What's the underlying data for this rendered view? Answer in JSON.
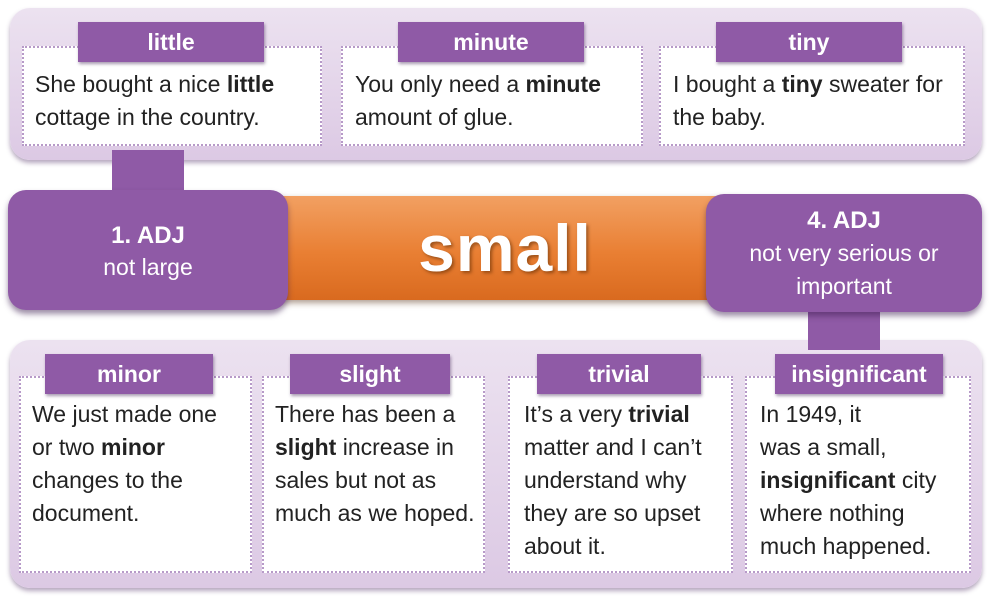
{
  "headword": "small",
  "senses": [
    {
      "number": "1. ADJ",
      "definition": "not large"
    },
    {
      "number": "4. ADJ",
      "definition_line1": "not very serious or",
      "definition_line2": "important"
    }
  ],
  "sense1_synonyms": [
    {
      "word": "little",
      "lines": [
        "She bought a nice <b>little</b>",
        "cottage in the country."
      ]
    },
    {
      "word": "minute",
      "lines": [
        "You only need a <b>minute</b>",
        "amount of glue."
      ]
    },
    {
      "word": "tiny",
      "lines": [
        "I bought a <b>tiny</b> sweater for",
        "the baby."
      ]
    }
  ],
  "sense4_synonyms": [
    {
      "word": "minor",
      "lines": [
        "We just made one",
        "or two <b>minor</b>",
        "changes to the",
        "document."
      ]
    },
    {
      "word": "slight",
      "lines": [
        "There has been a",
        "<b>slight</b> increase in",
        "sales but not as",
        "much as we hoped."
      ]
    },
    {
      "word": "trivial",
      "lines": [
        "It’s a very <b>trivial</b>",
        "matter and I can’t",
        "understand why",
        "they are so upset",
        "about it."
      ]
    },
    {
      "word": "insignificant",
      "lines": [
        "In 1949, it",
        "was a small,",
        "<b>insignificant</b> city",
        "where nothing",
        "much happened."
      ]
    }
  ],
  "colors": {
    "purple": "#8f5aa6",
    "panel": "#e4d6ea",
    "orange": "#e97f33",
    "dotted_border": "#b79ac8"
  }
}
